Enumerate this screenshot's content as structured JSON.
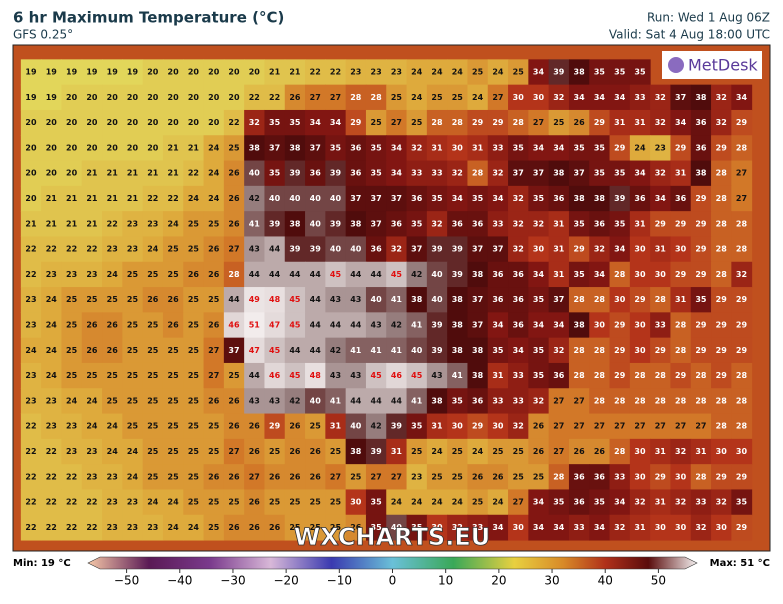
{
  "header": {
    "title": "6 hr Maximum Temperature (°C)",
    "model": "GFS 0.25°",
    "run": "Run: Wed 1 Aug 06Z",
    "valid": "Valid: Sat 4 Aug 18:00 UTC"
  },
  "logo": "MetDesk",
  "watermark": "WXCHARTS.EU",
  "grid": {
    "rows": [
      [
        19,
        19,
        19,
        19,
        19,
        19,
        20,
        20,
        20,
        20,
        20,
        20,
        21,
        21,
        22,
        22,
        23,
        23,
        23,
        24,
        24,
        24,
        25,
        24,
        25,
        34,
        39,
        38,
        35,
        35,
        35
      ],
      [
        19,
        19,
        20,
        20,
        20,
        20,
        20,
        20,
        20,
        20,
        20,
        22,
        22,
        26,
        27,
        27,
        28,
        28,
        25,
        24,
        25,
        25,
        24,
        27,
        30,
        30,
        32,
        34,
        34,
        34,
        33,
        32,
        37,
        38,
        32,
        34
      ],
      [
        20,
        20,
        20,
        20,
        20,
        20,
        20,
        20,
        20,
        20,
        22,
        32,
        35,
        35,
        34,
        34,
        29,
        25,
        27,
        25,
        28,
        28,
        29,
        29,
        28,
        27,
        25,
        26,
        29,
        31,
        31,
        32,
        34,
        36,
        32,
        29
      ],
      [
        20,
        20,
        20,
        20,
        20,
        20,
        20,
        21,
        21,
        24,
        25,
        38,
        37,
        38,
        37,
        35,
        36,
        35,
        34,
        32,
        31,
        30,
        31,
        33,
        35,
        34,
        34,
        35,
        35,
        29,
        24,
        23,
        29,
        36,
        29,
        28
      ],
      [
        20,
        20,
        20,
        21,
        21,
        21,
        21,
        21,
        22,
        24,
        26,
        40,
        35,
        39,
        36,
        39,
        36,
        35,
        34,
        33,
        33,
        32,
        28,
        32,
        37,
        37,
        38,
        37,
        35,
        35,
        34,
        32,
        31,
        38,
        28,
        27
      ],
      [
        20,
        21,
        21,
        21,
        21,
        21,
        22,
        22,
        24,
        24,
        26,
        42,
        40,
        40,
        40,
        40,
        37,
        37,
        37,
        36,
        35,
        34,
        35,
        34,
        32,
        35,
        36,
        38,
        38,
        39,
        36,
        34,
        36,
        29,
        28,
        27
      ],
      [
        21,
        21,
        21,
        21,
        22,
        23,
        23,
        24,
        25,
        25,
        26,
        41,
        39,
        38,
        40,
        39,
        38,
        37,
        36,
        35,
        32,
        36,
        36,
        33,
        32,
        32,
        31,
        35,
        36,
        35,
        31,
        29,
        29,
        29,
        28,
        28
      ],
      [
        22,
        22,
        22,
        22,
        23,
        23,
        24,
        25,
        25,
        26,
        27,
        43,
        44,
        39,
        39,
        40,
        40,
        36,
        32,
        37,
        39,
        39,
        37,
        37,
        32,
        30,
        31,
        29,
        32,
        34,
        30,
        31,
        30,
        29,
        28,
        28
      ],
      [
        22,
        23,
        23,
        23,
        24,
        25,
        25,
        25,
        26,
        26,
        28,
        44,
        44,
        44,
        44,
        45,
        44,
        44,
        45,
        42,
        40,
        39,
        38,
        36,
        36,
        34,
        31,
        35,
        34,
        28,
        30,
        30,
        29,
        29,
        28,
        32
      ],
      [
        23,
        24,
        25,
        25,
        25,
        25,
        26,
        26,
        25,
        25,
        44,
        49,
        48,
        45,
        44,
        43,
        43,
        40,
        41,
        38,
        40,
        38,
        37,
        36,
        36,
        35,
        37,
        28,
        28,
        30,
        29,
        28,
        31,
        35,
        29,
        29
      ],
      [
        23,
        24,
        25,
        26,
        26,
        25,
        25,
        26,
        25,
        26,
        46,
        51,
        47,
        45,
        44,
        44,
        44,
        43,
        42,
        41,
        39,
        38,
        37,
        34,
        36,
        34,
        34,
        38,
        30,
        29,
        30,
        33,
        28,
        29,
        29,
        29
      ],
      [
        24,
        24,
        25,
        26,
        26,
        25,
        25,
        25,
        25,
        27,
        37,
        47,
        45,
        44,
        44,
        42,
        41,
        41,
        41,
        40,
        39,
        38,
        38,
        35,
        34,
        35,
        32,
        28,
        28,
        29,
        30,
        29,
        28,
        29,
        29,
        29
      ],
      [
        23,
        24,
        25,
        25,
        25,
        25,
        25,
        25,
        25,
        27,
        25,
        44,
        46,
        45,
        48,
        43,
        43,
        45,
        46,
        45,
        43,
        41,
        38,
        31,
        33,
        35,
        36,
        28,
        28,
        29,
        28,
        28,
        29,
        28,
        29,
        28
      ],
      [
        23,
        23,
        24,
        24,
        25,
        25,
        25,
        25,
        25,
        26,
        26,
        43,
        43,
        42,
        40,
        41,
        44,
        44,
        44,
        41,
        38,
        35,
        36,
        33,
        33,
        32,
        27,
        27,
        28,
        28,
        28,
        28,
        28,
        28,
        28,
        28
      ],
      [
        22,
        23,
        23,
        24,
        24,
        25,
        25,
        25,
        25,
        25,
        26,
        26,
        29,
        26,
        25,
        31,
        40,
        42,
        39,
        35,
        31,
        30,
        29,
        30,
        32,
        26,
        27,
        27,
        27,
        27,
        27,
        27,
        27,
        27,
        28,
        28
      ],
      [
        22,
        22,
        23,
        23,
        24,
        24,
        25,
        25,
        25,
        25,
        27,
        26,
        25,
        26,
        26,
        25,
        38,
        39,
        31,
        25,
        24,
        25,
        24,
        25,
        25,
        26,
        27,
        26,
        26,
        28,
        30,
        31,
        32,
        31,
        30,
        30
      ],
      [
        22,
        22,
        22,
        23,
        23,
        24,
        25,
        25,
        25,
        26,
        26,
        27,
        26,
        26,
        26,
        27,
        25,
        27,
        27,
        23,
        25,
        25,
        26,
        26,
        25,
        25,
        28,
        36,
        36,
        33,
        30,
        29,
        30,
        28,
        29,
        29
      ],
      [
        22,
        22,
        22,
        22,
        23,
        23,
        24,
        24,
        25,
        25,
        25,
        26,
        25,
        25,
        25,
        25,
        30,
        35,
        24,
        24,
        24,
        24,
        25,
        24,
        27,
        34,
        35,
        36,
        35,
        34,
        32,
        31,
        32,
        33,
        32,
        35
      ],
      [
        22,
        22,
        22,
        22,
        23,
        23,
        23,
        24,
        24,
        25,
        26,
        26,
        26,
        25,
        25,
        25,
        26,
        35,
        40,
        35,
        30,
        32,
        33,
        34,
        30,
        34,
        34,
        33,
        34,
        32,
        31,
        30,
        30,
        32,
        30,
        29
      ]
    ]
  },
  "legend": {
    "min_label": "Min: 19 °C",
    "max_label": "Max: 51 °C",
    "lim": [
      -55,
      55
    ],
    "ticks": [
      {
        "value": -50,
        "label": "−50"
      },
      {
        "value": -40,
        "label": "−40"
      },
      {
        "value": -30,
        "label": "−30"
      },
      {
        "value": -20,
        "label": "−20"
      },
      {
        "value": -10,
        "label": "−10"
      },
      0,
      10,
      20,
      30,
      40,
      50
    ]
  }
}
